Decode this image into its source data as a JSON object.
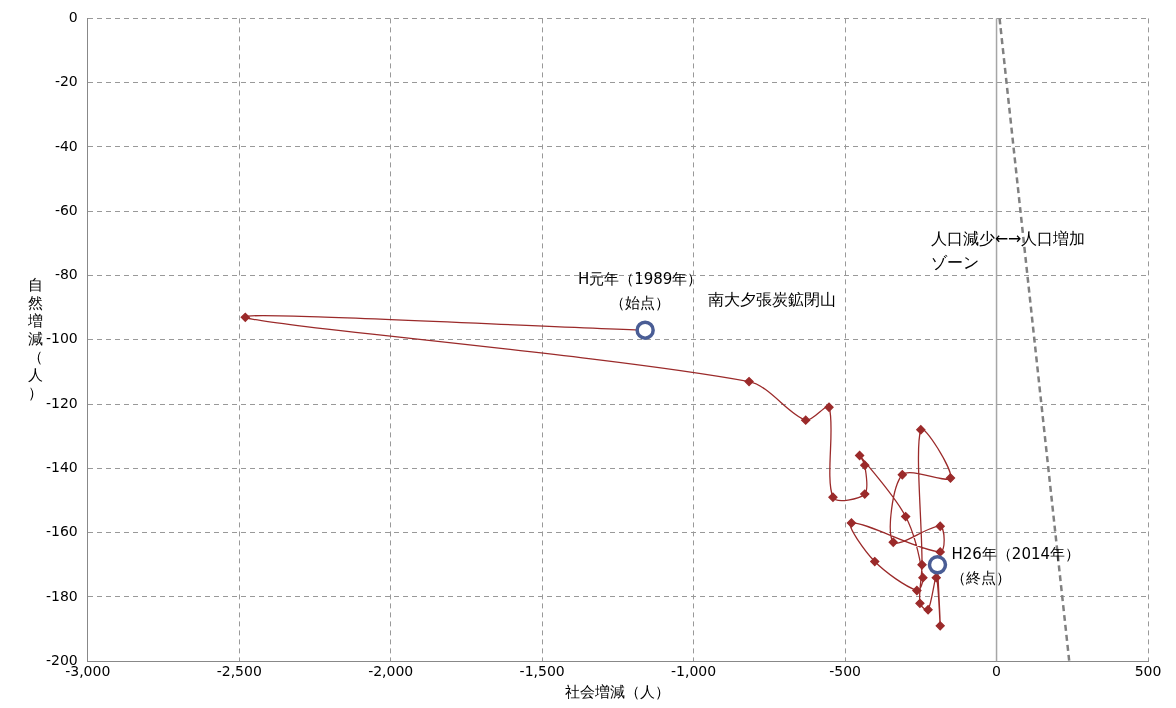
{
  "chart_data": {
    "type": "line",
    "xlabel": "社会増減（人）",
    "ylabel": "自然増減（人）",
    "xlim": [
      -3000,
      500
    ],
    "ylim": [
      -200,
      0
    ],
    "xticks": [
      {
        "value": -3000,
        "label": "-3,000"
      },
      {
        "value": -2500,
        "label": "-2,500"
      },
      {
        "value": -2000,
        "label": "-2,000"
      },
      {
        "value": -1500,
        "label": "-1,500"
      },
      {
        "value": -1000,
        "label": "-1,000"
      },
      -500,
      0,
      500
    ],
    "yticks": [
      -200,
      -180,
      -160,
      -140,
      -120,
      -100,
      -80,
      -60,
      -40,
      -20,
      0
    ],
    "grid": true,
    "legend": false,
    "series": [
      {
        "color": "#9b2a2a",
        "marker": "diamond",
        "line_style": "solid",
        "x": [
          -1160,
          -2480,
          -817,
          -630,
          -553,
          -540,
          -435,
          -435,
          -452,
          -300,
          -243,
          -263,
          -402,
          -479,
          -186,
          -186,
          -341,
          -311,
          -152,
          -250,
          -246,
          -253,
          -226,
          -199,
          -186,
          -195
        ],
        "values": [
          -97,
          -93,
          -113,
          -125,
          -121,
          -149,
          -148,
          -139,
          -136,
          -155,
          -174,
          -178,
          -169,
          -157,
          -166,
          -158,
          -163,
          -142,
          -143,
          -128,
          -170,
          -182,
          -184,
          -174,
          -189,
          -170
        ]
      },
      {
        "type": "scatter",
        "color": "#4a5d95",
        "marker": "circle",
        "x": [
          -1160,
          -195
        ],
        "values": [
          -97,
          -170
        ]
      },
      {
        "type": "line",
        "color": "#808080",
        "marker": "none",
        "line_style": "dashed",
        "x": [
          10,
          240
        ],
        "values": [
          0,
          -200
        ]
      }
    ],
    "ref_lines": [
      {
        "axis": "x",
        "value": 0,
        "color": "#a6a6a6",
        "line_style": "solid"
      }
    ],
    "annotations": [
      "H元年（1989年）",
      "（始点）",
      "H26年（2014年）",
      "（終点）",
      "南大夕張炭鉱閉山",
      "人口減少←→人口増加",
      "ゾーン"
    ]
  }
}
